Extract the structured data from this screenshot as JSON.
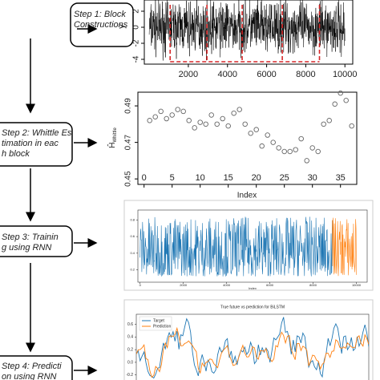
{
  "steps": [
    "Step 1: Block Constructions",
    "Step 2: Whittle Estimation in each block",
    "Step 3:  Training using RNN",
    "Step 4:  Prediction using RNN"
  ],
  "panel1": {
    "ylabel": "y",
    "xlim": [
      -250,
      10400
    ],
    "ylim": [
      -4.6,
      3.4
    ],
    "xticks": [
      2000,
      4000,
      6000,
      8000,
      10000
    ],
    "yticks": [
      -4,
      -2,
      0,
      2
    ],
    "block_boundaries": [
      1070,
      2950,
      4750,
      6800,
      8700
    ],
    "series_color": "#000000",
    "block_color": "#d62728"
  },
  "panel2": {
    "xlabel": "Index",
    "ylabel": "Ĥ",
    "ylabel_subscript": "Whittle",
    "xlim": [
      -1.1,
      37.9
    ],
    "ylim": [
      0.447,
      0.4975
    ],
    "xticks": [
      0,
      5,
      10,
      15,
      20,
      25,
      30,
      35
    ],
    "yticks": [
      0.45,
      0.47,
      0.49
    ],
    "x": [
      1,
      2,
      3,
      4,
      5,
      6,
      7,
      8,
      9,
      10,
      11,
      12,
      13,
      14,
      15,
      16,
      17,
      18,
      19,
      20,
      21,
      22,
      23,
      24,
      25,
      26,
      27,
      28,
      29,
      30,
      31,
      32,
      33,
      34,
      35,
      36,
      37
    ],
    "values": [
      0.482,
      0.484,
      0.487,
      0.483,
      0.485,
      0.488,
      0.487,
      0.482,
      0.478,
      0.481,
      0.48,
      0.485,
      0.48,
      0.483,
      0.479,
      0.486,
      0.488,
      0.48,
      0.475,
      0.477,
      0.468,
      0.474,
      0.47,
      0.467,
      0.465,
      0.465,
      0.466,
      0.472,
      0.46,
      0.467,
      0.465,
      0.48,
      0.482,
      0.491,
      0.497,
      0.493,
      0.479
    ],
    "color": "#666666"
  },
  "panel3": {
    "xlabel": "Index",
    "xlim": [
      -100,
      10500
    ],
    "ylim": [
      0.05,
      0.92
    ],
    "xticks": [
      0,
      2000,
      4000,
      6000,
      8000,
      10000
    ],
    "yticks": [
      0.2,
      0.4,
      0.6,
      0.8
    ],
    "train_color": "#1f77b4",
    "test_color": "#ff7f0e"
  },
  "panel4": {
    "title": "True future vs prediction for BiLSTM",
    "legend": [
      "Target",
      "Prediction"
    ],
    "colors": [
      "#1f77b4",
      "#ff7f0e"
    ],
    "ylim": [
      -0.28,
      0.76
    ],
    "yticks": [
      {
        "value": 0.6,
        "label": "0.6"
      },
      {
        "value": 0.4,
        "label": "0.4"
      },
      {
        "value": 0.2,
        "label": "0.2"
      },
      {
        "value": 0,
        "label": "0.0"
      },
      {
        "value": -0.2,
        "label": "-0.2"
      }
    ]
  }
}
